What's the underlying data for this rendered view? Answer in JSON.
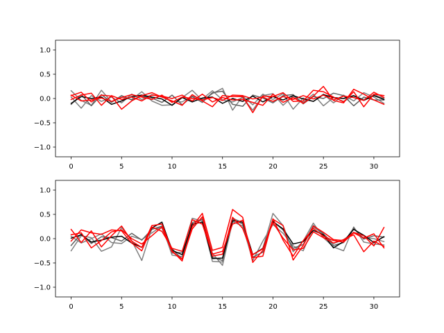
{
  "chart_data": [
    {
      "type": "line",
      "title": "",
      "xlabel": "",
      "ylabel": "",
      "xlim": [
        -1.55,
        32.55
      ],
      "ylim": [
        -1.2,
        1.2
      ],
      "xticks": [
        0,
        5,
        10,
        15,
        20,
        25,
        30
      ],
      "yticks": [
        -1.0,
        -0.5,
        0.0,
        0.5,
        1.0
      ],
      "xtick_labels": [
        "0",
        "5",
        "10",
        "15",
        "20",
        "25",
        "30"
      ],
      "ytick_labels": [
        "−1.0",
        "−0.5",
        "0.0",
        "0.5",
        "1.0"
      ],
      "grid": false,
      "series": [
        {
          "color": "#808080",
          "values": [
            0.16,
            -0.04,
            -0.14,
            0.17,
            -0.07,
            0.03,
            -0.02,
            0.14,
            -0.05,
            -0.14,
            -0.13,
            0.02,
            0.17,
            -0.04,
            0.1,
            0.21,
            -0.24,
            0.05,
            -0.13,
            0.09,
            -0.02,
            0.1,
            -0.22,
            0.01,
            -0.06,
            0.09,
            -0.09,
            0.07,
            -0.05,
            0.12,
            0.03,
            -0.1
          ]
        },
        {
          "color": "#808080",
          "values": [
            0.03,
            -0.2,
            0.06,
            -0.06,
            0.03,
            -0.09,
            0.09,
            -0.02,
            0.08,
            0.03,
            -0.06,
            -0.07,
            0.05,
            -0.01,
            0.16,
            -0.03,
            -0.07,
            0.02,
            -0.24,
            0.06,
            0.1,
            -0.14,
            0.05,
            -0.08,
            0.09,
            -0.15,
            0.02,
            -0.06,
            0.05,
            -0.02,
            0.08,
            0.0
          ]
        },
        {
          "color": "#606060",
          "values": [
            -0.12,
            0.08,
            -0.15,
            0.08,
            -0.08,
            0.06,
            -0.03,
            0.05,
            0.01,
            -0.08,
            0.07,
            -0.13,
            0.04,
            -0.08,
            0.12,
            0.15,
            -0.12,
            -0.16,
            0.07,
            0.01,
            -0.09,
            0.06,
            0.08,
            -0.11,
            0.04,
            0.0,
            0.11,
            0.06,
            -0.15,
            0.03,
            -0.03,
            -0.03
          ]
        },
        {
          "color": "#000000",
          "values": [
            -0.1,
            0.04,
            0.0,
            0.03,
            -0.12,
            -0.05,
            0.04,
            0.07,
            0.03,
            -0.01,
            -0.14,
            0.02,
            -0.07,
            0.01,
            0.03,
            -0.1,
            0.0,
            -0.06,
            0.05,
            -0.07,
            0.04,
            -0.03,
            0.06,
            -0.01,
            -0.06,
            0.08,
            0.02,
            0.0,
            0.06,
            -0.04,
            0.06,
            -0.02
          ]
        },
        {
          "color": "#ff0000",
          "values": [
            0.06,
            0.13,
            -0.07,
            0.07,
            0.05,
            -0.22,
            -0.05,
            0.06,
            0.12,
            0.03,
            -0.05,
            -0.14,
            0.08,
            -0.05,
            -0.17,
            0.06,
            0.04,
            0.04,
            -0.29,
            0.05,
            0.04,
            0.12,
            -0.06,
            -0.05,
            0.17,
            0.14,
            0.03,
            -0.07,
            0.14,
            -0.17,
            0.09,
            0.06
          ]
        },
        {
          "color": "#ff0000",
          "values": [
            -0.02,
            0.07,
            0.11,
            -0.14,
            0.06,
            -0.02,
            0.03,
            -0.05,
            0.07,
            0.05,
            0.0,
            0.07,
            -0.05,
            0.09,
            -0.07,
            0.02,
            -0.03,
            -0.02,
            -0.08,
            -0.14,
            0.09,
            -0.08,
            0.02,
            -0.1,
            0.05,
            0.25,
            -0.04,
            -0.09,
            0.19,
            0.09,
            -0.03,
            -0.12
          ]
        },
        {
          "color": "#ff0000",
          "values": [
            0.07,
            -0.05,
            -0.03,
            0.01,
            -0.06,
            0.02,
            0.08,
            0.03,
            -0.02,
            0.07,
            -0.08,
            0.03,
            0.0,
            -0.03,
            0.02,
            -0.04,
            0.07,
            0.06,
            -0.01,
            0.03,
            -0.06,
            0.04,
            -0.02,
            0.06,
            -0.01,
            0.07,
            -0.03,
            0.05,
            0.02,
            -0.04,
            0.13,
            0.02
          ]
        }
      ]
    },
    {
      "type": "line",
      "title": "",
      "xlabel": "",
      "ylabel": "",
      "xlim": [
        -1.55,
        32.55
      ],
      "ylim": [
        -1.2,
        1.2
      ],
      "xticks": [
        0,
        5,
        10,
        15,
        20,
        25,
        30
      ],
      "yticks": [
        -1.0,
        -0.5,
        0.0,
        0.5,
        1.0
      ],
      "xtick_labels": [
        "0",
        "5",
        "10",
        "15",
        "20",
        "25",
        "30"
      ],
      "ytick_labels": [
        "−1.0",
        "−0.5",
        "0.0",
        "0.5",
        "1.0"
      ],
      "grid": false,
      "series": [
        {
          "color": "#808080",
          "values": [
            -0.25,
            0.06,
            0.02,
            -0.26,
            -0.17,
            0.23,
            -0.04,
            -0.45,
            0.21,
            0.22,
            -0.3,
            -0.28,
            0.42,
            0.36,
            -0.47,
            -0.48,
            0.42,
            0.33,
            -0.33,
            -0.2,
            0.52,
            0.27,
            -0.27,
            -0.05,
            0.32,
            0.02,
            -0.17,
            -0.25,
            0.24,
            -0.07,
            -0.11,
            -0.13
          ]
        },
        {
          "color": "#808080",
          "values": [
            0.05,
            -0.09,
            0.0,
            0.1,
            -0.08,
            -0.1,
            0.05,
            -0.02,
            0.12,
            0.26,
            -0.34,
            -0.37,
            0.25,
            0.41,
            -0.3,
            -0.55,
            0.35,
            0.26,
            -0.45,
            -0.05,
            0.29,
            0.11,
            -0.15,
            -0.25,
            0.24,
            0.1,
            -0.1,
            -0.02,
            0.13,
            0.02,
            0.0,
            -0.06
          ]
        },
        {
          "color": "#606060",
          "values": [
            -0.14,
            0.1,
            -0.1,
            0.04,
            0.02,
            -0.05,
            0.11,
            -0.03,
            0.19,
            0.26,
            -0.21,
            -0.42,
            0.33,
            0.4,
            -0.38,
            -0.45,
            0.4,
            0.3,
            -0.38,
            -0.28,
            0.36,
            0.18,
            -0.2,
            -0.12,
            0.27,
            0.1,
            -0.14,
            -0.08,
            0.22,
            -0.01,
            0.06,
            0.03
          ]
        },
        {
          "color": "#000000",
          "values": [
            0.01,
            0.08,
            -0.07,
            -0.03,
            0.03,
            0.05,
            -0.09,
            -0.18,
            0.22,
            0.34,
            -0.24,
            -0.33,
            0.3,
            0.34,
            -0.41,
            -0.4,
            0.37,
            0.34,
            -0.33,
            -0.2,
            0.35,
            0.2,
            -0.11,
            -0.06,
            0.17,
            0.08,
            -0.19,
            -0.06,
            0.19,
            0.07,
            -0.08,
            0.04
          ]
        },
        {
          "color": "#ff0000",
          "values": [
            0.19,
            -0.08,
            0.16,
            -0.17,
            0.06,
            0.26,
            -0.05,
            -0.18,
            0.27,
            0.3,
            -0.25,
            -0.46,
            0.25,
            0.52,
            -0.24,
            -0.18,
            0.6,
            0.44,
            -0.49,
            -0.24,
            0.4,
            0.27,
            -0.44,
            -0.14,
            0.26,
            0.13,
            -0.02,
            -0.04,
            0.13,
            0.06,
            -0.15,
            0.23
          ]
        },
        {
          "color": "#ff0000",
          "values": [
            -0.05,
            0.18,
            0.12,
            0.09,
            0.18,
            0.16,
            -0.09,
            -0.25,
            0.24,
            0.15,
            -0.2,
            -0.26,
            0.39,
            0.3,
            -0.32,
            -0.26,
            0.3,
            0.38,
            -0.39,
            -0.36,
            0.41,
            -0.03,
            -0.36,
            -0.04,
            0.21,
            0.05,
            -0.04,
            -0.07,
            0.12,
            0.01,
            0.1,
            -0.19
          ]
        },
        {
          "color": "#ff0000",
          "values": [
            0.08,
            0.12,
            -0.19,
            -0.04,
            0.14,
            0.18,
            0.0,
            -0.11,
            0.06,
            0.24,
            -0.27,
            -0.42,
            0.2,
            0.45,
            -0.36,
            -0.32,
            0.44,
            0.21,
            -0.33,
            -0.21,
            0.33,
            0.01,
            -0.23,
            -0.2,
            0.14,
            0.02,
            -0.09,
            -0.02,
            0.08,
            -0.27,
            -0.05,
            -0.16
          ]
        }
      ]
    }
  ]
}
